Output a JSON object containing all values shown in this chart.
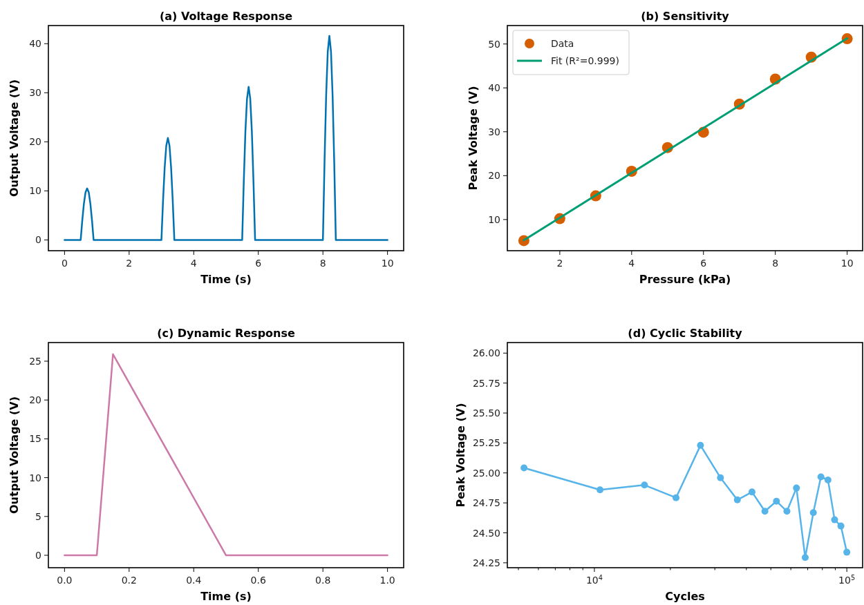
{
  "chart_data": [
    {
      "type": "line",
      "title": "(a) Voltage Response",
      "xlabel": "Time (s)",
      "ylabel": "Output Voltage (V)",
      "xlim": [
        -0.5,
        10.5
      ],
      "ylim": [
        -2.2,
        43.7
      ],
      "xticks": [
        0,
        2,
        4,
        6,
        8,
        10
      ],
      "yticks": [
        0,
        10,
        20,
        30,
        40
      ],
      "series": [
        {
          "color": "#0072b2",
          "x": [
            0,
            0.5,
            0.55,
            0.6,
            0.65,
            0.7,
            0.75,
            0.8,
            0.85,
            0.9,
            3.0,
            3.05,
            3.1,
            3.15,
            3.2,
            3.25,
            3.3,
            3.35,
            3.4,
            5.5,
            5.55,
            5.6,
            5.65,
            5.7,
            5.75,
            5.8,
            5.85,
            5.9,
            8.0,
            8.05,
            8.1,
            8.15,
            8.2,
            8.25,
            8.3,
            8.35,
            8.4,
            10
          ],
          "values": [
            0,
            0,
            4.0,
            7.4,
            9.7,
            10.5,
            9.7,
            7.4,
            4.0,
            0,
            0,
            8.0,
            14.7,
            19.2,
            20.8,
            19.2,
            14.7,
            8.0,
            0,
            0,
            11.9,
            22.1,
            28.8,
            31.2,
            28.8,
            22.1,
            11.9,
            0,
            0,
            15.9,
            29.4,
            38.4,
            41.6,
            38.4,
            29.4,
            15.9,
            0,
            0
          ]
        }
      ]
    },
    {
      "type": "scatter",
      "title": "(b) Sensitivity",
      "xlabel": "Pressure (kPa)",
      "ylabel": "Peak Voltage (V)",
      "xlim": [
        0.54,
        10.43
      ],
      "ylim": [
        2.9,
        54.2
      ],
      "xticks": [
        2,
        4,
        6,
        8,
        10
      ],
      "yticks": [
        10,
        20,
        30,
        40,
        50
      ],
      "legend": "top left",
      "series": [
        {
          "name": "Data",
          "type": "scatter",
          "marker": "circle",
          "color": "#d55e00",
          "x": [
            1,
            2,
            3,
            4,
            5,
            6,
            7,
            8,
            9,
            10
          ],
          "values": [
            5.2,
            10.2,
            15.4,
            21.0,
            26.4,
            29.9,
            36.3,
            42.0,
            47.0,
            51.2
          ]
        },
        {
          "name": "Fit (R²=0.999)",
          "type": "line",
          "color": "#009e73",
          "x": [
            1,
            10
          ],
          "values": [
            5.3,
            51.3
          ]
        }
      ]
    },
    {
      "type": "line",
      "title": "(c) Dynamic Response",
      "xlabel": "Time (s)",
      "ylabel": "Output Voltage (V)",
      "xlim": [
        -0.05,
        1.05
      ],
      "ylim": [
        -1.6,
        27.4
      ],
      "xticks": [
        {
          "value": 0,
          "label": "0.0"
        },
        {
          "value": 0.2,
          "label": "0.2"
        },
        {
          "value": 0.4,
          "label": "0.4"
        },
        {
          "value": 0.6,
          "label": "0.6"
        },
        {
          "value": 0.8,
          "label": "0.8"
        },
        {
          "value": 1,
          "label": "1.0"
        }
      ],
      "yticks": [
        0,
        5,
        10,
        15,
        20,
        25
      ],
      "series": [
        {
          "color": "#cc79a7",
          "x": [
            0,
            0.1,
            0.15,
            0.5,
            1.0
          ],
          "values": [
            0,
            0,
            25.9,
            0,
            0
          ]
        }
      ]
    },
    {
      "type": "line",
      "title": "(d) Cyclic Stability",
      "xlabel": "Cycles",
      "ylabel": "Peak Voltage (V)",
      "log": "x",
      "marker": "circle",
      "xlim": [
        4520,
        115500
      ],
      "ylim": [
        24.209,
        26.088
      ],
      "xticks": [
        {
          "value": 5000,
          "label": null
        },
        {
          "value": 6000,
          "label": null
        },
        {
          "value": 7000,
          "label": null
        },
        {
          "value": 8000,
          "label": null
        },
        {
          "value": 9000,
          "label": null
        },
        {
          "value": 10000,
          "label": "10$^{4}$"
        },
        {
          "value": 20000,
          "label": null
        },
        {
          "value": 30000,
          "label": null
        },
        {
          "value": 40000,
          "label": null
        },
        {
          "value": 50000,
          "label": null
        },
        {
          "value": 60000,
          "label": null
        },
        {
          "value": 70000,
          "label": null
        },
        {
          "value": 80000,
          "label": null
        },
        {
          "value": 90000,
          "label": null
        },
        {
          "value": 100000,
          "label": "10$^{5}$"
        }
      ],
      "yticks": [
        {
          "value": 24.25,
          "label": "24.25"
        },
        {
          "value": 24.5,
          "label": "24.50"
        },
        {
          "value": 24.75,
          "label": "24.75"
        },
        {
          "value": 25,
          "label": "25.00"
        },
        {
          "value": 25.25,
          "label": "25.25"
        },
        {
          "value": 25.5,
          "label": "25.50"
        },
        {
          "value": 25.75,
          "label": "25.75"
        },
        {
          "value": 26,
          "label": "26.00"
        }
      ],
      "series": [
        {
          "color": "#56b4e9",
          "x": [
            5263,
            10526,
            15789,
            21053,
            26316,
            31579,
            36842,
            42105,
            47368,
            52632,
            57895,
            63158,
            68421,
            73684,
            78947,
            84211,
            89474,
            94737,
            100000
          ],
          "values": [
            25.042,
            24.859,
            24.899,
            24.793,
            25.23,
            24.96,
            24.775,
            24.841,
            24.68,
            24.764,
            24.68,
            24.874,
            24.294,
            24.669,
            24.967,
            24.941,
            24.609,
            24.557,
            24.338
          ]
        }
      ]
    }
  ]
}
